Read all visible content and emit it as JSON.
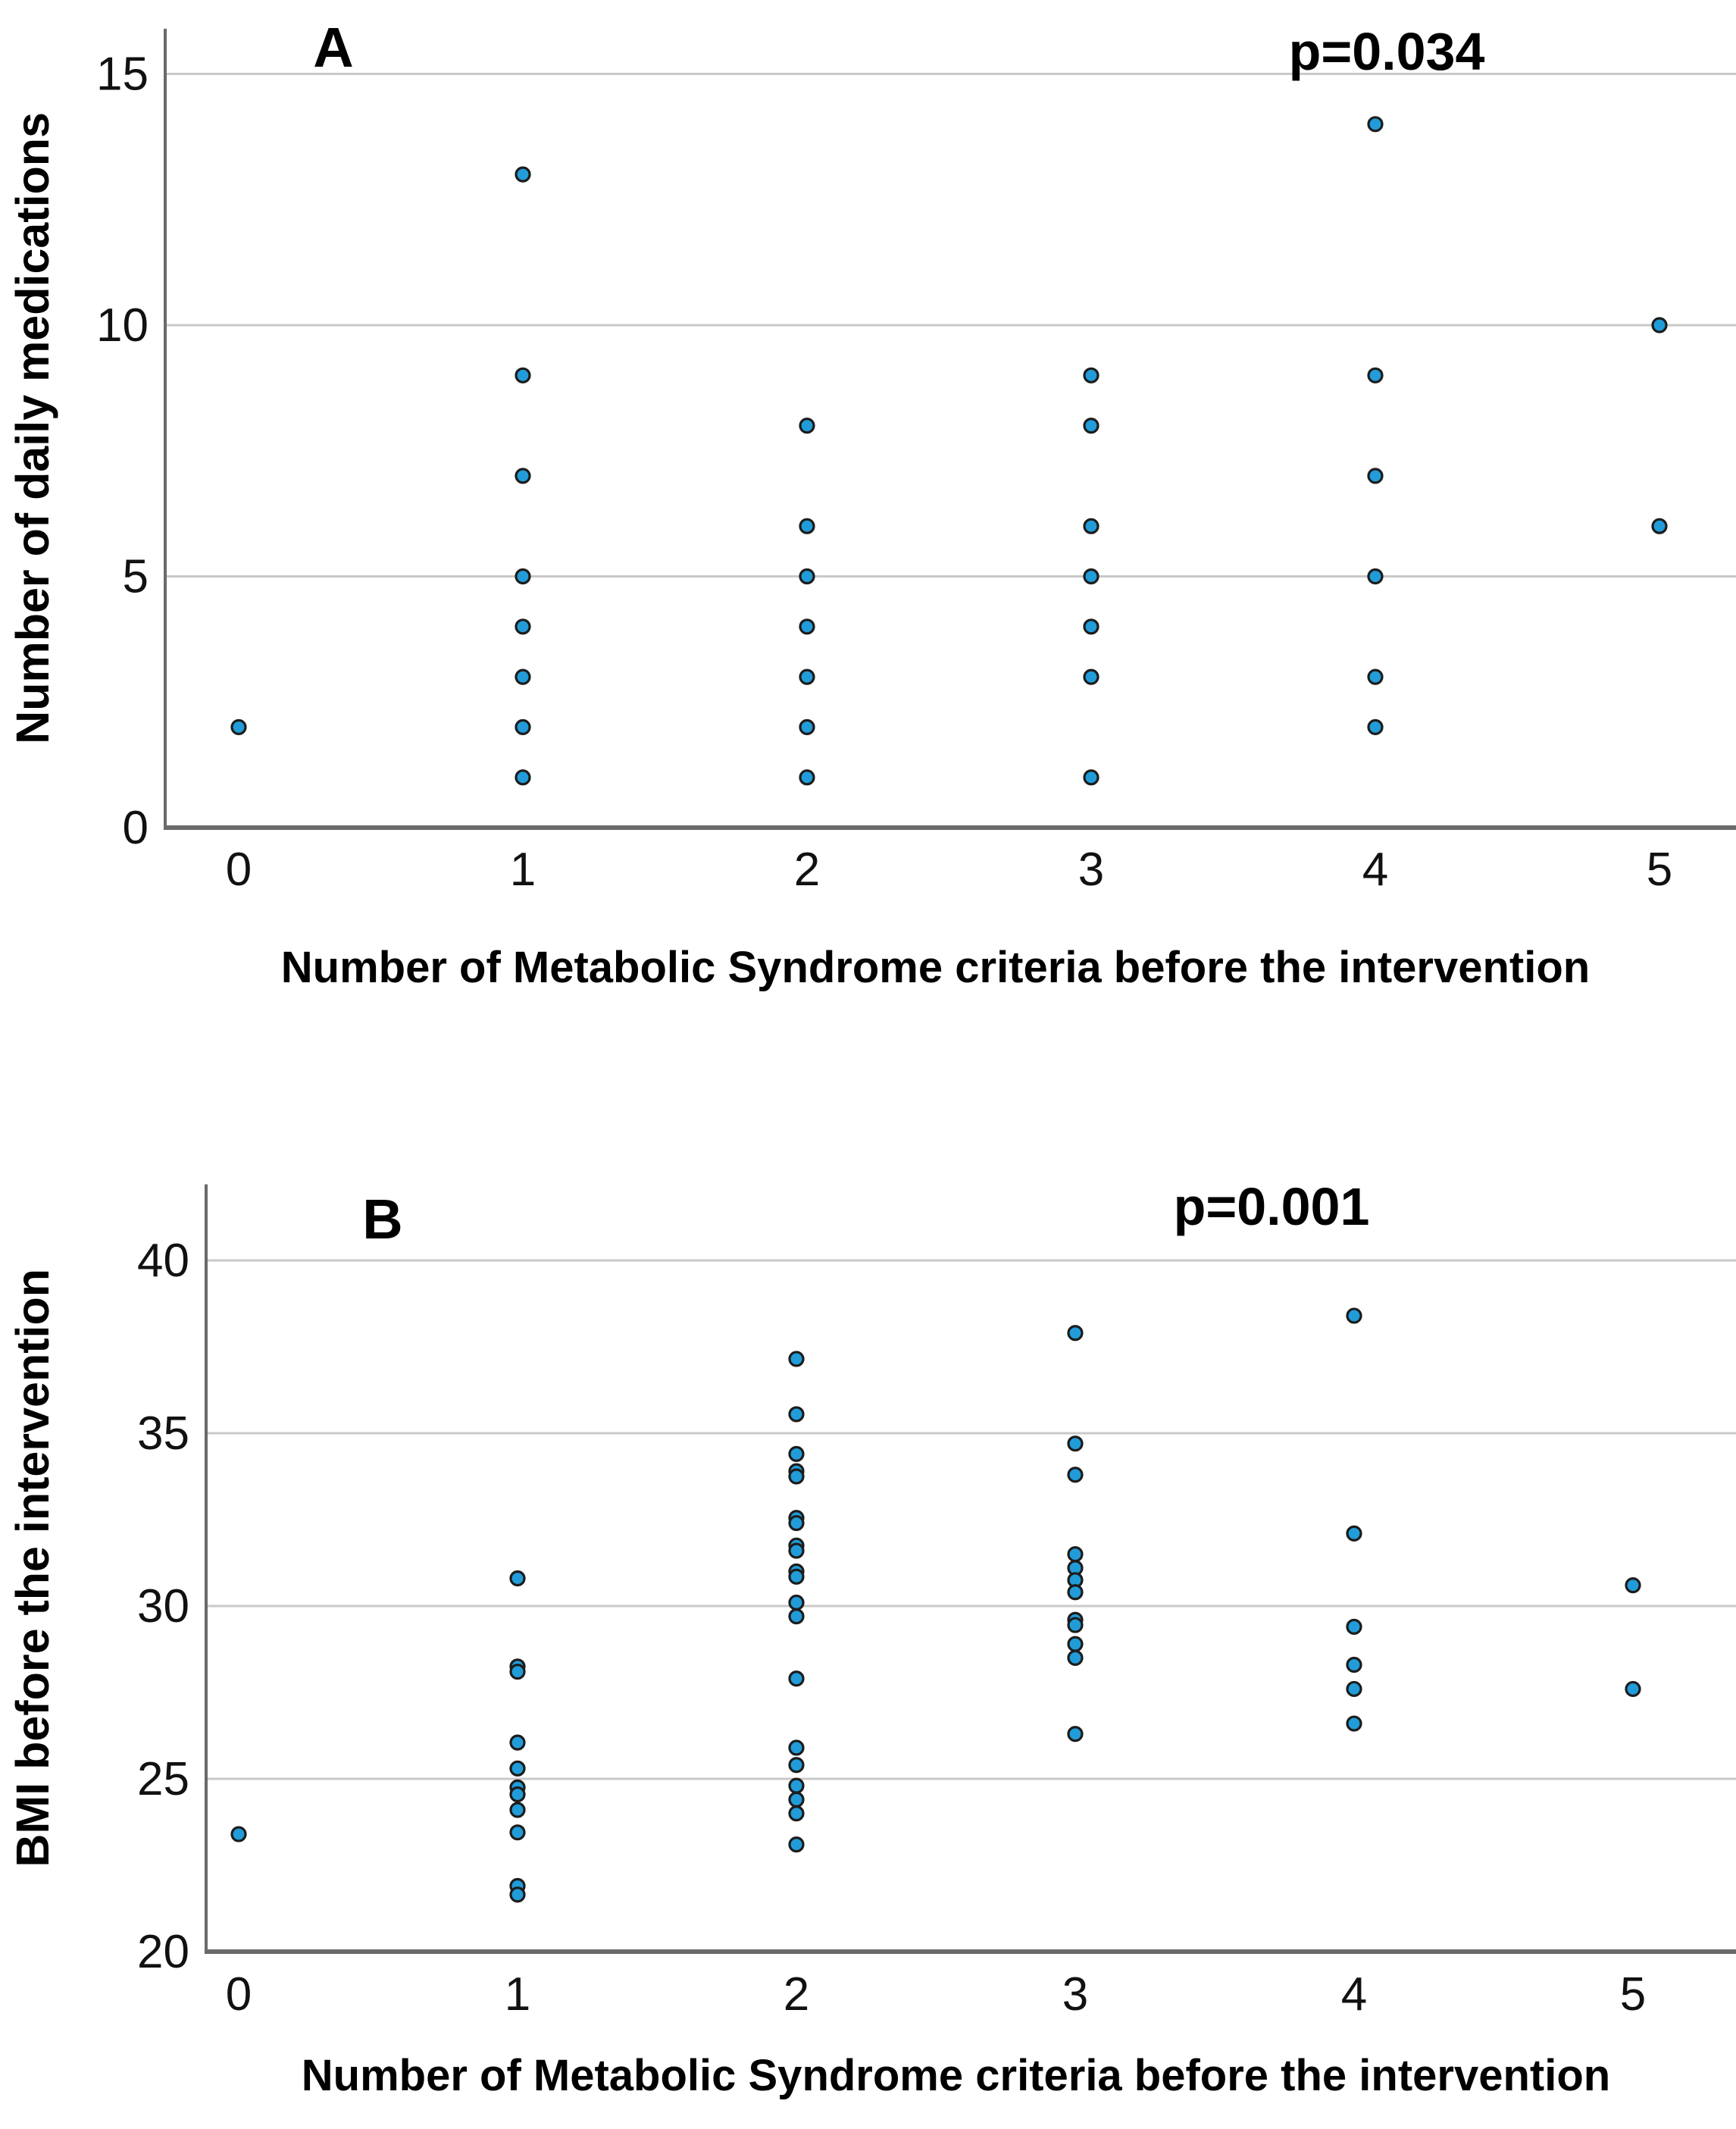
{
  "figure": {
    "description_labels": {
      "panel_a_letter": "A",
      "panel_b_letter": "B",
      "panel_a_p_value": "p=0.034",
      "panel_b_p_value": "p=0.001"
    },
    "style": {
      "dot_fill": "#219cd9",
      "dot_stroke": "#1c1c1c",
      "gridline_color": "#c9c9c9",
      "axis_color": "#6a6a6a",
      "text_color": "#111111",
      "background": "#ffffff"
    }
  },
  "chart_data": [
    {
      "type": "scatter",
      "panel": "A",
      "annotation": "p=0.034",
      "xlabel": "Number of Metabolic Syndrome criteria before the intervention",
      "ylabel": "Number of daily medications",
      "x_ticks": [
        0,
        1,
        2,
        3,
        4,
        5
      ],
      "y_ticks": [
        0,
        5,
        10,
        15
      ],
      "ylim": [
        0,
        15.9
      ],
      "grid": true,
      "legend": false,
      "points_by_x": {
        "0": [
          2
        ],
        "1": [
          13,
          9,
          7,
          5,
          4,
          3,
          2,
          1
        ],
        "2": [
          8,
          6,
          5,
          4,
          3,
          2,
          1
        ],
        "3": [
          9,
          8,
          6,
          5,
          4,
          3,
          1
        ],
        "4": [
          14,
          9,
          7,
          5,
          3,
          2
        ],
        "5": [
          10,
          6
        ]
      }
    },
    {
      "type": "scatter",
      "panel": "B",
      "annotation": "p=0.001",
      "xlabel": "Number of Metabolic Syndrome criteria before the intervention",
      "ylabel": "BMI before the intervention",
      "x_ticks": [
        0,
        1,
        2,
        3,
        4,
        5
      ],
      "y_ticks": [
        20,
        25,
        30,
        35,
        40
      ],
      "ylim": [
        20,
        42.2
      ],
      "grid": true,
      "legend": false,
      "points_by_x": {
        "0": [
          23.4
        ],
        "1": [
          30.8,
          28.25,
          28.1,
          26.05,
          25.3,
          24.75,
          24.55,
          24.1,
          23.45,
          21.9,
          21.65
        ],
        "2": [
          37.15,
          35.55,
          34.4,
          33.9,
          33.75,
          32.55,
          32.4,
          31.75,
          31.6,
          31.0,
          30.85,
          30.1,
          29.7,
          27.9,
          25.9,
          25.4,
          24.8,
          24.4,
          24.0,
          23.1
        ],
        "3": [
          37.9,
          34.7,
          33.8,
          31.5,
          31.1,
          30.75,
          30.4,
          29.6,
          29.45,
          28.9,
          28.5,
          26.3
        ],
        "4": [
          38.4,
          32.1,
          29.4,
          28.3,
          27.6,
          26.6
        ],
        "5": [
          30.6,
          27.6
        ]
      }
    }
  ]
}
